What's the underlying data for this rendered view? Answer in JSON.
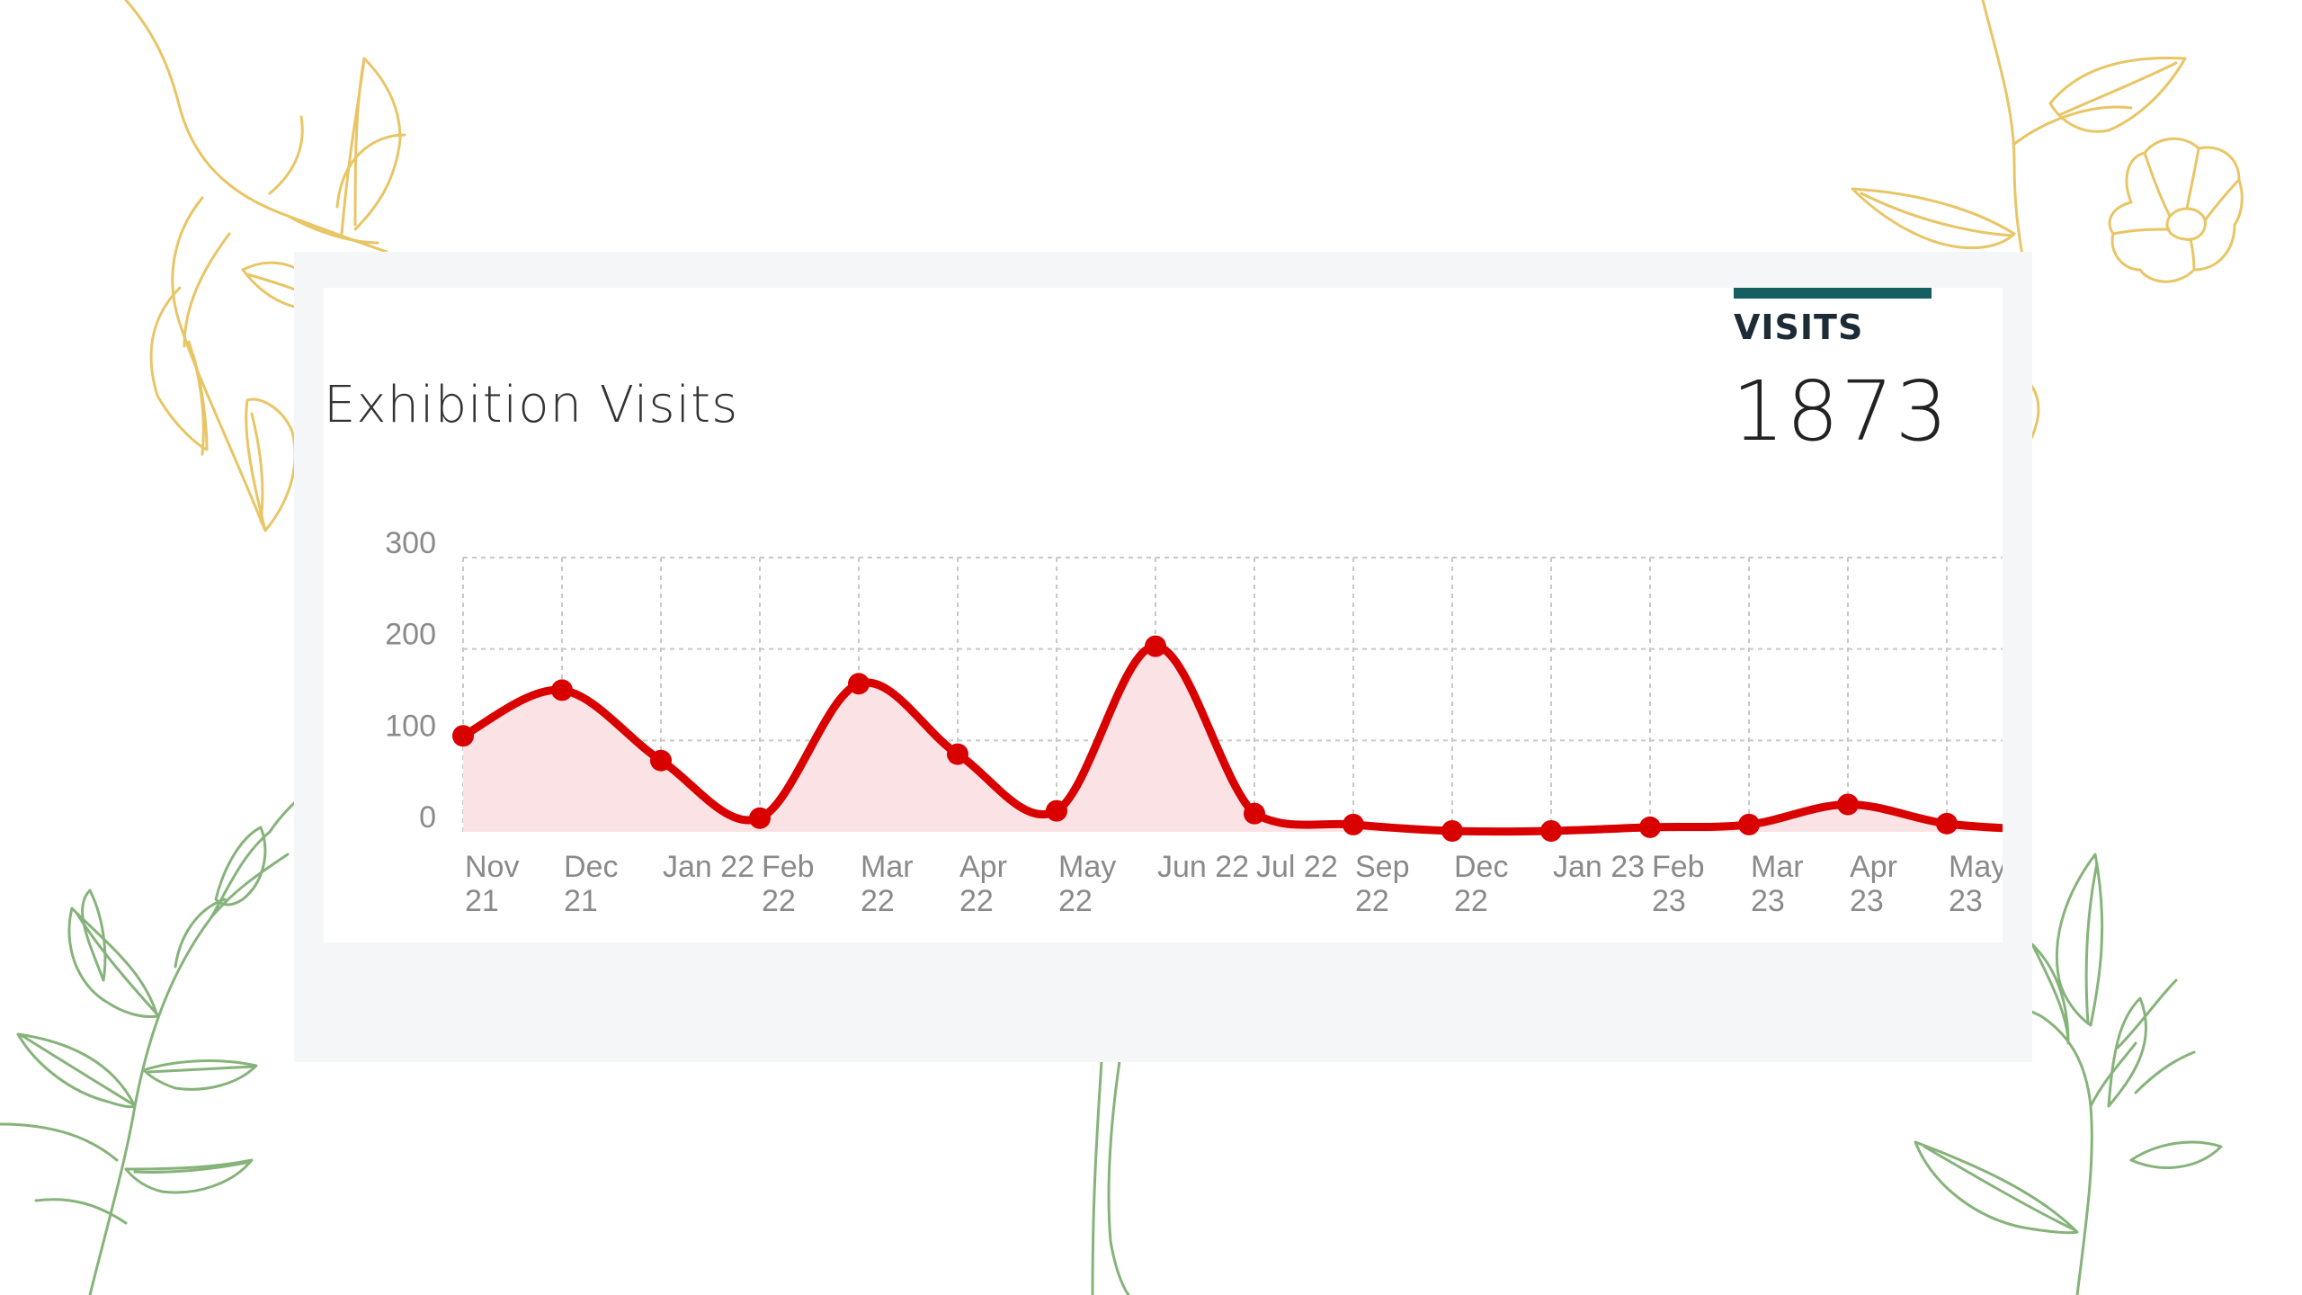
{
  "kpi": {
    "label": "VISITS",
    "value": "1873"
  },
  "colors": {
    "line": "#d90000",
    "area": "#fbe3e5",
    "kpi_bar": "#155f63",
    "grid": "#c8c8c8",
    "panel": "#f4f6f8",
    "vine_gold": "#e8c565",
    "vine_green": "#86b37a"
  },
  "decor_icons": [
    "gold-vine-left-icon",
    "gold-flower-right-icon",
    "green-vine-left-icon",
    "green-vine-right-icon",
    "green-stem-center-icon"
  ],
  "chart_data": {
    "type": "area",
    "title": "Exhibition Visits",
    "xlabel": "",
    "ylabel": "",
    "ylim": [
      0,
      300
    ],
    "yticks": [
      "300",
      "200",
      "100",
      "0"
    ],
    "grid": true,
    "categories": [
      [
        "Nov",
        "21"
      ],
      [
        "Dec",
        "21"
      ],
      [
        "Jan 22",
        ""
      ],
      [
        "Feb",
        "22"
      ],
      [
        "Mar",
        "22"
      ],
      [
        "Apr",
        "22"
      ],
      [
        "May",
        "22"
      ],
      [
        "Jun 22",
        ""
      ],
      [
        "Jul 22",
        ""
      ],
      [
        "Sep",
        "22"
      ],
      [
        "Dec",
        "22"
      ],
      [
        "Jan 23",
        ""
      ],
      [
        "Feb",
        "23"
      ],
      [
        "Mar",
        "23"
      ],
      [
        "Apr",
        "23"
      ],
      [
        "May",
        "23"
      ]
    ],
    "series": [
      {
        "values": [
          105,
          155,
          78,
          15,
          162,
          85,
          23,
          203,
          20,
          8,
          1,
          1,
          5,
          8,
          30,
          9
        ]
      }
    ],
    "trailing_value": 2
  }
}
